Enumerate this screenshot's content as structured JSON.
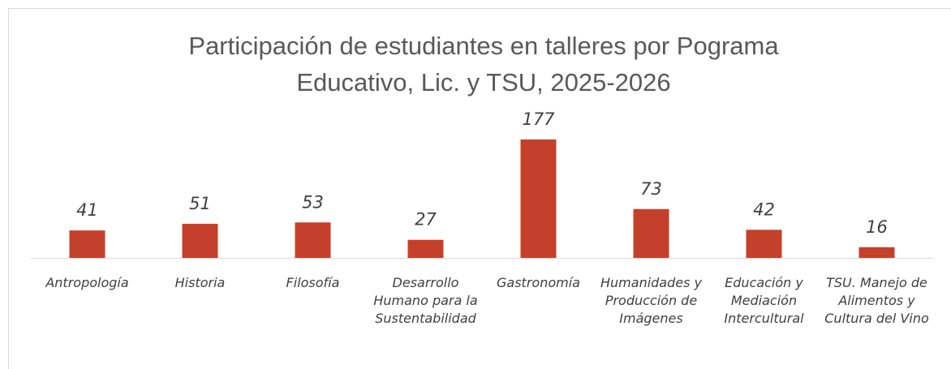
{
  "chart_data": {
    "type": "bar",
    "title": "Participación de estudiantes en talleres por Pograma Educativo, Lic. y TSU, 2025-2026",
    "categories": [
      "Antropología",
      "Historia",
      "Filosofía",
      "Desarrollo Humano para la Sustentabilidad",
      "Gastronomía",
      "Humanidades y Producción de Imágenes",
      "Educación y Mediación Intercultural",
      "TSU. Manejo de Alimentos y Cultura del Vino"
    ],
    "values": [
      41,
      51,
      53,
      27,
      177,
      73,
      42,
      16
    ],
    "color": "#c5402a",
    "ylim": [
      0,
      200
    ]
  }
}
